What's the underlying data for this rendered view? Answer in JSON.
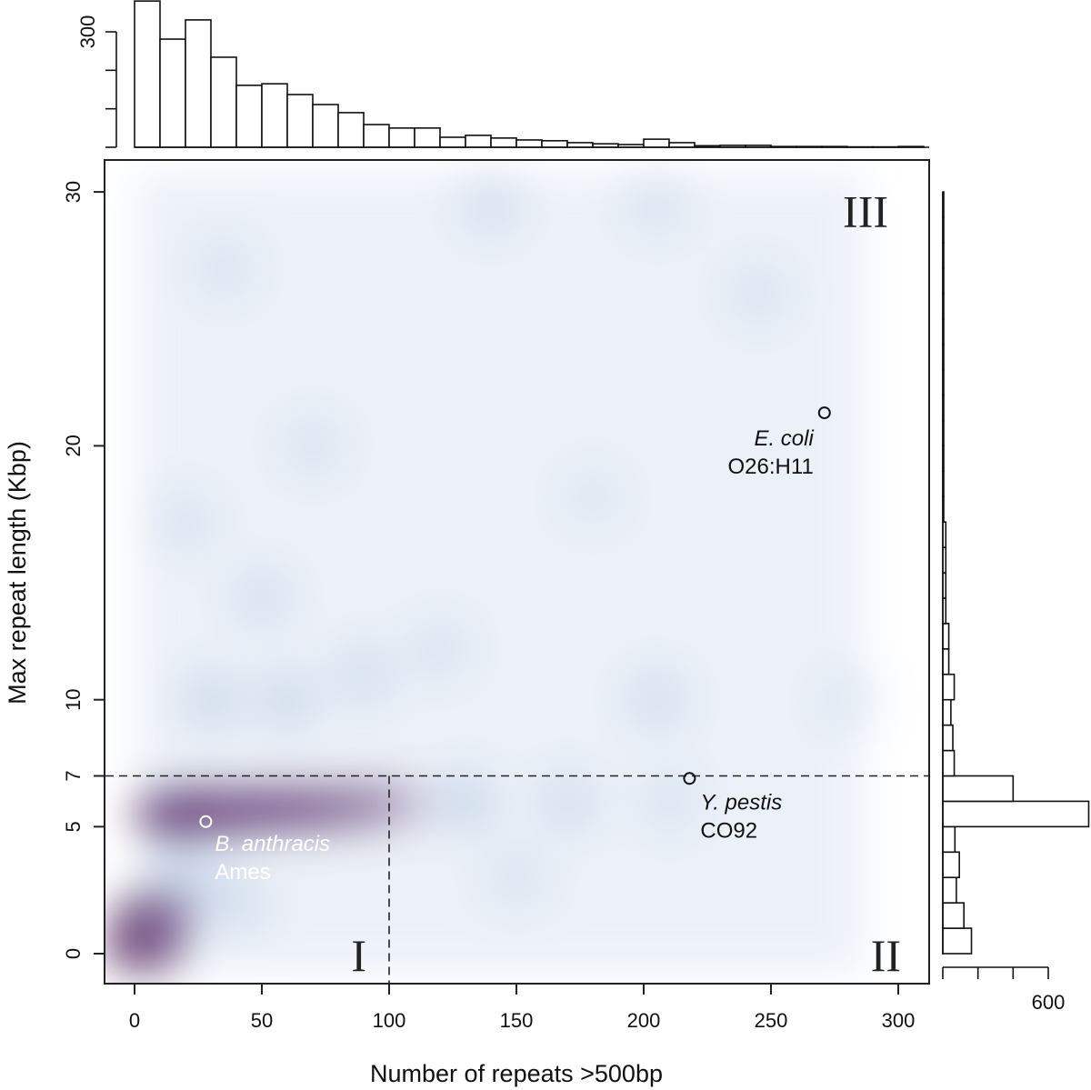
{
  "chart_data": {
    "type": "heatmap",
    "subtype": "2d-density scatter with marginal histograms",
    "xlabel": "Number of repeats >500bp",
    "ylabel": "Max repeat length (Kbp)",
    "xlim": [
      -12,
      312
    ],
    "ylim": [
      -1.2,
      31.2
    ],
    "x_ticks": [
      0,
      50,
      100,
      150,
      200,
      250,
      300
    ],
    "y_ticks": [
      0,
      5,
      7,
      10,
      20,
      30
    ],
    "thresholds": {
      "x": 100,
      "y": 7
    },
    "regions": [
      {
        "label": "I",
        "x": 90,
        "y": 0
      },
      {
        "label": "II",
        "x": 300,
        "y": 0
      },
      {
        "label": "III",
        "x": 295,
        "y": 29.3
      }
    ],
    "annotations": [
      {
        "species": "B. anthracis",
        "strain": "Ames",
        "x": 28,
        "y": 5.2,
        "color": "#ffffff"
      },
      {
        "species": "Y. pestis",
        "strain": "CO92",
        "x": 218,
        "y": 6.9,
        "color": "#111111"
      },
      {
        "species": "E. coli",
        "strain": "O26:H11",
        "x": 271,
        "y": 21.3,
        "color": "#111111"
      }
    ],
    "density_hotspots": [
      {
        "x": 5,
        "y": 0.3,
        "w": 1.0,
        "c": "purple"
      },
      {
        "x": 8,
        "y": 1.5,
        "w": 0.9,
        "c": "purple"
      },
      {
        "x": 15,
        "y": 5.5,
        "w": 1.0,
        "c": "purple"
      },
      {
        "x": 25,
        "y": 5.6,
        "w": 1.0,
        "c": "purple"
      },
      {
        "x": 40,
        "y": 5.6,
        "w": 0.9,
        "c": "purple"
      },
      {
        "x": 55,
        "y": 5.7,
        "w": 0.8,
        "c": "purple"
      },
      {
        "x": 70,
        "y": 5.7,
        "w": 0.7,
        "c": "purple"
      },
      {
        "x": 85,
        "y": 5.8,
        "w": 0.55,
        "c": "purple"
      },
      {
        "x": 100,
        "y": 5.9,
        "w": 0.4,
        "c": "purple"
      },
      {
        "x": 20,
        "y": 3,
        "w": 0.5,
        "c": "blue"
      },
      {
        "x": 40,
        "y": 2,
        "w": 0.4,
        "c": "blue"
      },
      {
        "x": 130,
        "y": 6,
        "w": 0.5,
        "c": "blue"
      },
      {
        "x": 170,
        "y": 6,
        "w": 0.4,
        "c": "blue"
      },
      {
        "x": 210,
        "y": 6,
        "w": 0.3,
        "c": "blue"
      },
      {
        "x": 30,
        "y": 10,
        "w": 0.45,
        "c": "blue"
      },
      {
        "x": 60,
        "y": 10,
        "w": 0.45,
        "c": "blue"
      },
      {
        "x": 90,
        "y": 11,
        "w": 0.4,
        "c": "blue"
      },
      {
        "x": 205,
        "y": 10,
        "w": 0.4,
        "c": "blue"
      },
      {
        "x": 50,
        "y": 14,
        "w": 0.35,
        "c": "blue"
      },
      {
        "x": 120,
        "y": 12,
        "w": 0.3,
        "c": "blue"
      },
      {
        "x": 20,
        "y": 17,
        "w": 0.3,
        "c": "blue"
      },
      {
        "x": 70,
        "y": 20,
        "w": 0.3,
        "c": "blue"
      },
      {
        "x": 140,
        "y": 29.5,
        "w": 0.35,
        "c": "blue"
      },
      {
        "x": 205,
        "y": 29.5,
        "w": 0.3,
        "c": "blue"
      },
      {
        "x": 245,
        "y": 26,
        "w": 0.3,
        "c": "blue"
      },
      {
        "x": 35,
        "y": 27,
        "w": 0.3,
        "c": "blue"
      },
      {
        "x": 150,
        "y": 3,
        "w": 0.3,
        "c": "blue"
      },
      {
        "x": 280,
        "y": 10,
        "w": 0.25,
        "c": "blue"
      },
      {
        "x": 180,
        "y": 18,
        "w": 0.25,
        "c": "blue"
      }
    ],
    "top_histogram": {
      "bin_width": 10,
      "bin_start": 0,
      "counts": [
        380,
        281,
        331,
        234,
        161,
        165,
        137,
        111,
        90,
        59,
        50,
        50,
        26,
        31,
        24,
        19,
        17,
        12,
        9,
        7,
        21,
        12,
        4,
        5,
        5,
        2,
        2,
        2,
        1,
        1,
        2
      ],
      "ticks": [
        0,
        100,
        200,
        300
      ],
      "tick_label": "300"
    },
    "right_histogram": {
      "bin_width": 1,
      "bin_start": 0,
      "counts": [
        163,
        120,
        77,
        94,
        69,
        830,
        400,
        65,
        57,
        46,
        65,
        34,
        34,
        17,
        17,
        17,
        17,
        4,
        4,
        4,
        4,
        3,
        3,
        3,
        3,
        3,
        3,
        3,
        3,
        3
      ],
      "ticks": [
        0,
        200,
        400,
        600
      ],
      "tick_label": "600"
    }
  }
}
